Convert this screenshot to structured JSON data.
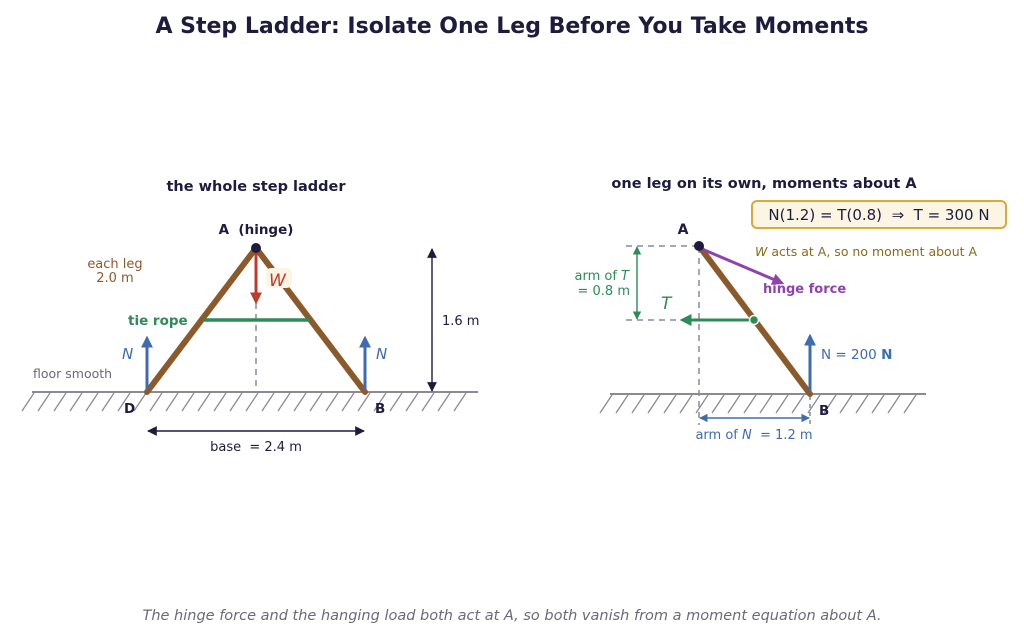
{
  "title": "A Step Ladder: Isolate One Leg Before You Take Moments",
  "caption": "The hinge force and the hanging load both act at A, so both vanish from a moment equation about A.",
  "colors": {
    "ink": "#1e1b3f",
    "leg": "#8a5a2b",
    "rope": "#2e8b57",
    "normal": "#3f6bb0",
    "weight": "#c0392b",
    "hinge_force": "#8e44ad",
    "ground": "#8a8a96",
    "note": "#8a6a1e",
    "box_fill": "#fdf5e4",
    "box_border": "#d9a93a"
  },
  "left": {
    "heading": "the whole step ladder",
    "apex_label": "A  (hinge)",
    "leg_note_1": "each leg",
    "leg_note_2": "2.0 m",
    "weight_label": "W",
    "rope_label": "tie rope",
    "floor_label": "floor smooth",
    "normal_left": "N",
    "normal_right": "N",
    "foot_left": "D",
    "foot_right": "B",
    "height_label": "1.6 m",
    "base_label": "base  = 2.4 m"
  },
  "right": {
    "heading": "one leg on its own, moments about A",
    "equation": "N(1.2) = T(0.8)  ⇒  T = 300 N",
    "note_symbol": "W",
    "note_rest": " acts at A, so no moment about A",
    "apex_label": "A",
    "foot_label": "B",
    "tension_label": "T",
    "arm_t_line1_pre": "arm of ",
    "arm_t_symbol": "T",
    "arm_t_line2": "= 0.8 m",
    "hinge_force_label": "hinge force",
    "normal_label": "N = 200 ",
    "normal_unit": "N",
    "arm_n_pre": "arm of ",
    "arm_n_symbol": "N",
    "arm_n_post": "  = 1.2 m"
  }
}
